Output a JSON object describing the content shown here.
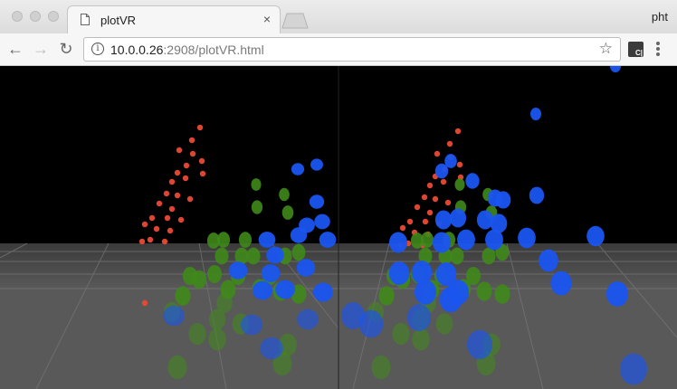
{
  "window": {
    "tab_title": "plotVR",
    "tab_close": "×",
    "user": "pht"
  },
  "toolbar": {
    "back": "←",
    "forward": "→",
    "reload": "↻",
    "url_host": "10.0.0.26",
    "url_rest": ":2908/plotVR.html",
    "info": "i",
    "bookmark_star": "☆",
    "extension_label": "C|"
  },
  "scene": {
    "background": "#000000",
    "floor_color": "#5a5a5a",
    "series_colors": [
      "#ea4a35",
      "#3f8a1a",
      "#1a55f0"
    ]
  }
}
